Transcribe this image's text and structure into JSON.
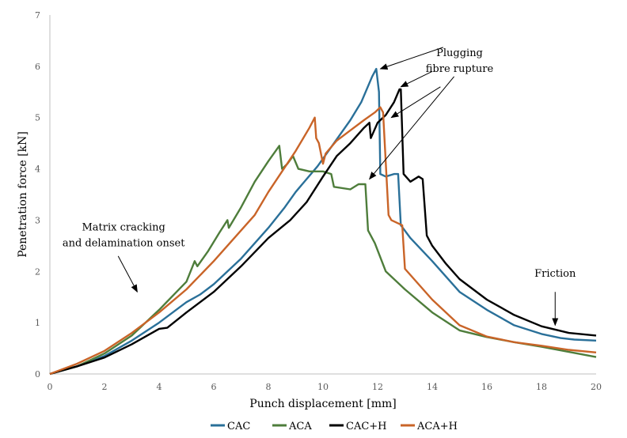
{
  "chart_data": {
    "type": "line",
    "title": "",
    "xlabel": "Punch displacement [mm]",
    "ylabel": "Penetration force [kN]",
    "xlim": [
      0,
      20
    ],
    "ylim": [
      0,
      7
    ],
    "xticks": [
      0,
      2,
      4,
      6,
      8,
      10,
      12,
      14,
      16,
      18,
      20
    ],
    "yticks": [
      0,
      1,
      2,
      3,
      4,
      5,
      6,
      7
    ],
    "grid": false,
    "legend_position": "bottom",
    "annotations": [
      {
        "line1": "Plugging",
        "line2": "fibre rupture",
        "arrows_to": [
          [
            12.1,
            5.95
          ],
          [
            12.85,
            5.6
          ],
          [
            12.5,
            5.0
          ],
          [
            11.7,
            3.8
          ]
        ],
        "text_at": [
          15.0,
          6.2
        ]
      },
      {
        "line1": "Matrix cracking",
        "line2": "and delamination onset",
        "arrows_to": [
          [
            3.2,
            1.6
          ]
        ],
        "text_at": [
          2.7,
          2.8
        ]
      },
      {
        "line1": "Friction",
        "line2": "",
        "arrows_to": [
          [
            18.5,
            0.95
          ]
        ],
        "text_at": [
          18.5,
          1.9
        ]
      }
    ],
    "series": [
      {
        "name": "CAC",
        "color": "#2a7099",
        "x": [
          0,
          1,
          2,
          3,
          4,
          5,
          5.5,
          6,
          7,
          8,
          8.6,
          9,
          9.4,
          9.8,
          10.2,
          10.6,
          11,
          11.4,
          11.8,
          11.95,
          12.05,
          12.1,
          12.3,
          12.6,
          12.75,
          12.85,
          13.2,
          14,
          15,
          16,
          17,
          18,
          18.7,
          19.2,
          20
        ],
        "y": [
          0,
          0.15,
          0.35,
          0.65,
          1.0,
          1.4,
          1.55,
          1.75,
          2.25,
          2.85,
          3.25,
          3.55,
          3.8,
          4.05,
          4.35,
          4.65,
          4.95,
          5.3,
          5.8,
          5.95,
          5.5,
          3.9,
          3.85,
          3.9,
          3.9,
          2.9,
          2.65,
          2.2,
          1.6,
          1.25,
          0.95,
          0.78,
          0.7,
          0.67,
          0.65
        ]
      },
      {
        "name": "ACA",
        "color": "#4e7d3b",
        "x": [
          0,
          1,
          2,
          3,
          4,
          5,
          5.3,
          5.4,
          5.8,
          6.2,
          6.5,
          6.55,
          7,
          7.5,
          8,
          8.4,
          8.5,
          8.7,
          8.9,
          9.1,
          9.5,
          10,
          10.3,
          10.4,
          11,
          11.3,
          11.55,
          11.65,
          11.9,
          12.3,
          13,
          14,
          15,
          16,
          17,
          18,
          19,
          20
        ],
        "y": [
          0,
          0.15,
          0.4,
          0.75,
          1.25,
          1.8,
          2.2,
          2.1,
          2.4,
          2.75,
          3.0,
          2.85,
          3.25,
          3.75,
          4.15,
          4.45,
          4.0,
          4.1,
          4.25,
          4.0,
          3.95,
          3.95,
          3.9,
          3.65,
          3.6,
          3.7,
          3.7,
          2.8,
          2.55,
          2.0,
          1.65,
          1.2,
          0.85,
          0.72,
          0.62,
          0.53,
          0.43,
          0.33
        ]
      },
      {
        "name": "CAC+H",
        "color": "#000000",
        "x": [
          0,
          1,
          2,
          3,
          4,
          4.3,
          5,
          6,
          7,
          8,
          8.8,
          9.4,
          10,
          10.5,
          11,
          11.5,
          11.7,
          11.75,
          12,
          12.3,
          12.6,
          12.8,
          12.85,
          12.95,
          13.2,
          13.5,
          13.65,
          13.8,
          14,
          14.5,
          15,
          16,
          17,
          18,
          19,
          20
        ],
        "y": [
          0,
          0.15,
          0.32,
          0.58,
          0.88,
          0.9,
          1.2,
          1.6,
          2.1,
          2.65,
          3.0,
          3.35,
          3.85,
          4.25,
          4.5,
          4.8,
          4.9,
          4.6,
          4.9,
          5.05,
          5.3,
          5.55,
          5.55,
          3.9,
          3.75,
          3.85,
          3.8,
          2.7,
          2.5,
          2.15,
          1.85,
          1.45,
          1.15,
          0.93,
          0.8,
          0.75
        ]
      },
      {
        "name": "ACA+H",
        "color": "#c96428",
        "x": [
          0,
          1,
          2,
          3,
          4,
          5,
          6,
          7,
          7.5,
          8,
          8.5,
          9,
          9.5,
          9.7,
          9.75,
          9.85,
          10,
          10.1,
          10.5,
          11,
          11.5,
          11.9,
          12.1,
          12.2,
          12.4,
          12.5,
          12.9,
          13,
          14,
          15,
          16,
          17,
          18,
          19,
          20
        ],
        "y": [
          0,
          0.2,
          0.45,
          0.8,
          1.2,
          1.65,
          2.2,
          2.8,
          3.1,
          3.55,
          3.95,
          4.35,
          4.8,
          5.0,
          4.6,
          4.5,
          4.1,
          4.3,
          4.55,
          4.75,
          4.95,
          5.1,
          5.2,
          5.1,
          3.1,
          3.0,
          2.9,
          2.05,
          1.45,
          0.95,
          0.73,
          0.62,
          0.55,
          0.47,
          0.42
        ]
      }
    ]
  }
}
